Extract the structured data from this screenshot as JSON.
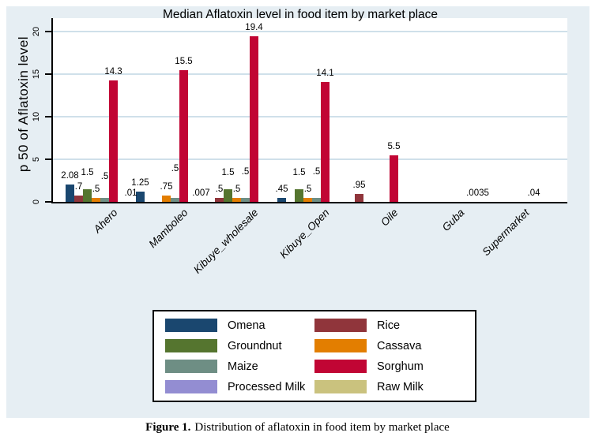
{
  "title": "Median Aflatoxin level in food item by market place",
  "y_axis": {
    "title": "p 50 of Aflatoxin level",
    "tick_labels": [
      "0",
      "5",
      "10",
      "15",
      "20"
    ]
  },
  "caption": {
    "prefix": "Figure 1.",
    "text": "Distribution of aflatoxin in food item by market place"
  },
  "legend": {
    "items": [
      {
        "label": "Omena",
        "color": "#1a476f"
      },
      {
        "label": "Rice",
        "color": "#90353b"
      },
      {
        "label": "Groundnut",
        "color": "#55752f"
      },
      {
        "label": "Cassava",
        "color": "#e37e00"
      },
      {
        "label": "Maize",
        "color": "#6e8e84"
      },
      {
        "label": "Sorghum",
        "color": "#c10534"
      },
      {
        "label": "Processed Milk",
        "color": "#938dd2"
      },
      {
        "label": "Raw Milk",
        "color": "#cac27e"
      }
    ]
  },
  "chart_data": {
    "type": "bar",
    "title": "Median Aflatoxin level in food item by market place",
    "xlabel": "",
    "ylabel": "p 50 of Aflatoxin level",
    "ylim": [
      0,
      20
    ],
    "yticks": [
      0,
      5,
      10,
      15,
      20
    ],
    "grid": true,
    "legend_position": "bottom",
    "categories": [
      "Ahero",
      "Mamboleo",
      "Kibuye_wholesale",
      "Kibuye_Open",
      "Oile",
      "Guba",
      "Supermarket"
    ],
    "series": [
      {
        "name": "Omena",
        "color": "#1a476f",
        "values": [
          2.08,
          1.25,
          null,
          0.45,
          null,
          null,
          null
        ],
        "labels": [
          "2.08",
          "1.25",
          "",
          ".45",
          "",
          "",
          ""
        ],
        "label_raise": [
          0,
          0,
          0,
          0,
          0,
          0,
          0
        ]
      },
      {
        "name": "Rice",
        "color": "#90353b",
        "values": [
          0.7,
          null,
          0.5,
          null,
          0.95,
          null,
          null
        ],
        "labels": [
          ".7",
          "",
          ".5",
          "",
          ".95",
          "",
          ""
        ],
        "label_raise": [
          0,
          0,
          0,
          0,
          0,
          0,
          0
        ]
      },
      {
        "name": "Groundnut",
        "color": "#55752f",
        "values": [
          1.5,
          null,
          1.5,
          1.5,
          null,
          null,
          null
        ],
        "labels": [
          "1.5",
          "",
          "1.5",
          "1.5",
          "",
          "",
          ""
        ],
        "label_raise": [
          10,
          0,
          10,
          10,
          0,
          0,
          0
        ]
      },
      {
        "name": "Cassava",
        "color": "#e37e00",
        "values": [
          0.5,
          0.75,
          0.5,
          0.5,
          null,
          null,
          null
        ],
        "labels": [
          ".5",
          ".75",
          ".5",
          ".5",
          "",
          "",
          ""
        ],
        "label_raise": [
          0,
          0,
          0,
          0,
          0,
          0,
          0
        ]
      },
      {
        "name": "Maize",
        "color": "#6e8e84",
        "values": [
          0.5,
          0.5,
          0.5,
          0.5,
          null,
          null,
          null
        ],
        "labels": [
          ".5",
          ".5",
          ".5",
          ".5",
          "",
          "",
          ""
        ],
        "label_raise": [
          16,
          26,
          22,
          22,
          0,
          0,
          0
        ]
      },
      {
        "name": "Sorghum",
        "color": "#c10534",
        "values": [
          14.3,
          15.5,
          19.4,
          14.1,
          5.5,
          null,
          null
        ],
        "labels": [
          "14.3",
          "15.5",
          "19.4",
          "14.1",
          "5.5",
          "",
          ""
        ],
        "label_raise": [
          0,
          0,
          0,
          0,
          0,
          0,
          0
        ]
      },
      {
        "name": "Processed Milk",
        "color": "#938dd2",
        "values": [
          null,
          null,
          null,
          null,
          null,
          null,
          0.04
        ],
        "labels": [
          "",
          "",
          "",
          "",
          "",
          "",
          ".04"
        ],
        "label_raise": [
          0,
          0,
          0,
          0,
          0,
          0,
          0
        ]
      },
      {
        "name": "Raw Milk",
        "color": "#cac27e",
        "values": [
          0.01,
          0.007,
          null,
          null,
          null,
          0.0035,
          null
        ],
        "labels": [
          ".01",
          ".007",
          "",
          "",
          "",
          ".0035",
          ""
        ],
        "label_raise": [
          0,
          0,
          0,
          0,
          0,
          0,
          0
        ]
      }
    ]
  }
}
